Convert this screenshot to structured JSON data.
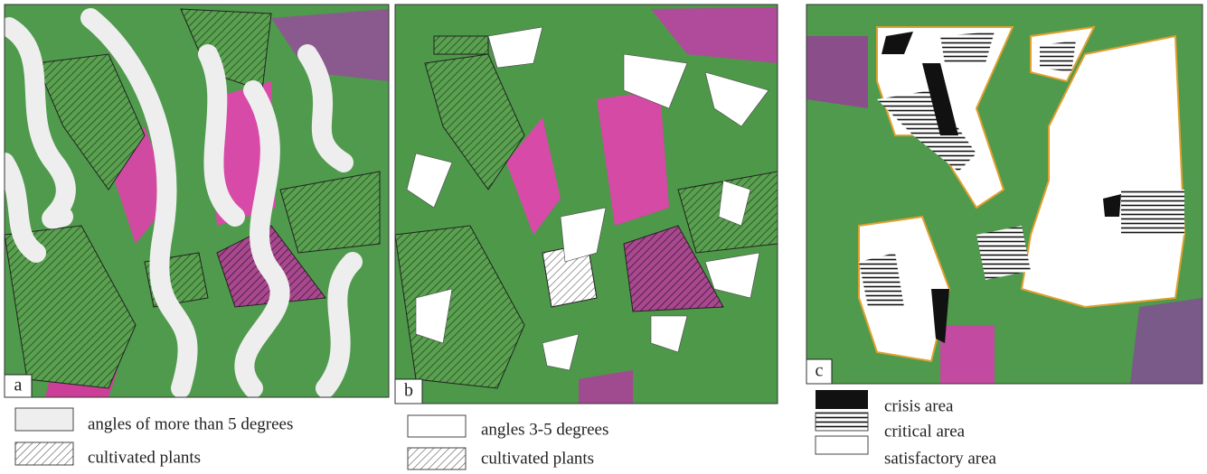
{
  "panels": [
    {
      "label": "a",
      "legend": [
        {
          "text": "angles of more than 5 degrees"
        },
        {
          "text": "cultivated plants"
        }
      ]
    },
    {
      "label": "b",
      "legend": [
        {
          "text": "angles 3-5 degrees"
        },
        {
          "text": "cultivated plants"
        }
      ]
    },
    {
      "label": "c",
      "legend": [
        {
          "text": "crisis area"
        },
        {
          "text": "critical area"
        },
        {
          "text": "satisfactory area"
        }
      ]
    }
  ]
}
